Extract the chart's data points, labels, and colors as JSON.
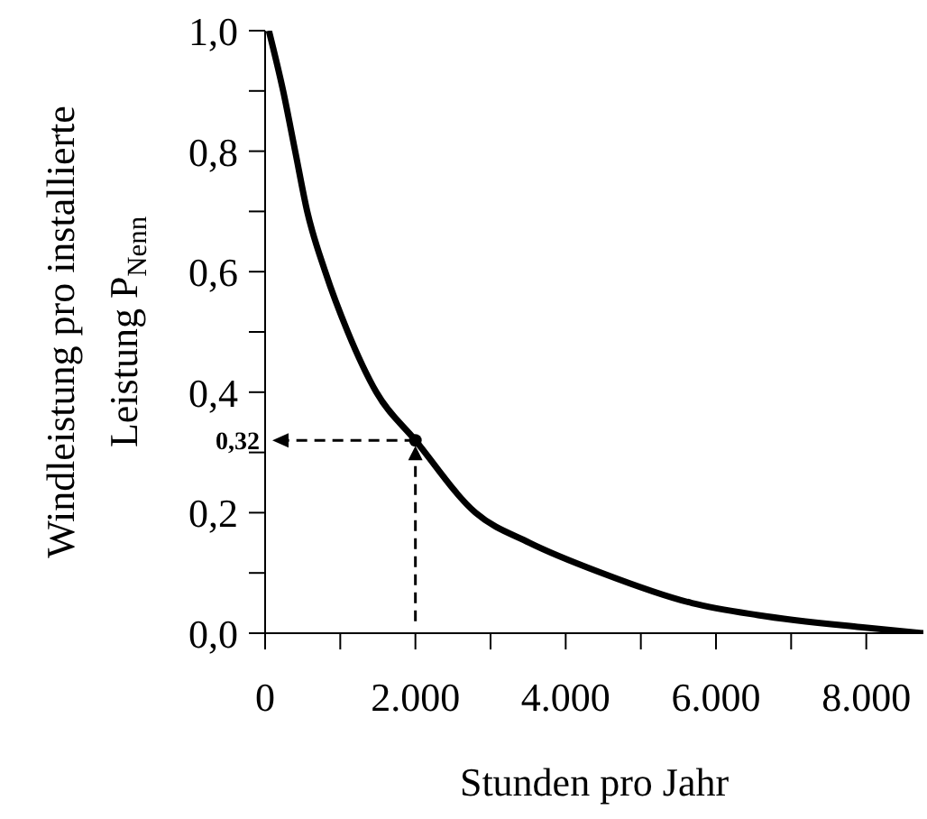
{
  "chart_data": {
    "type": "line",
    "xlabel": "Stunden pro Jahr",
    "ylabel": "Windleistung pro installierte Leistung P$_{Nenn}$",
    "x": [
      50,
      240,
      400,
      560,
      800,
      1100,
      1480,
      2000,
      2800,
      3520,
      4480,
      5680,
      6560,
      7920,
      8760
    ],
    "series": [
      {
        "color": "#000000",
        "values": [
          1.0,
          0.9,
          0.8,
          0.7,
          0.6,
          0.5,
          0.4,
          0.32,
          0.2,
          0.15,
          0.1,
          0.05,
          0.03,
          0.01,
          0.0
        ]
      }
    ],
    "xlim": [
      0,
      8760
    ],
    "ylim": [
      0,
      1
    ],
    "xticks": [
      {
        "value": 0,
        "label": "0"
      },
      {
        "value": 1000,
        "label": null
      },
      {
        "value": 2000,
        "label": "2.000"
      },
      {
        "value": 3000,
        "label": null
      },
      {
        "value": 4000,
        "label": "4.000"
      },
      {
        "value": 5000,
        "label": null
      },
      {
        "value": 6000,
        "label": "6.000"
      },
      {
        "value": 7000,
        "label": null
      },
      {
        "value": 8000,
        "label": "8.000"
      }
    ],
    "yticks": [
      {
        "value": 0,
        "label": "0,0"
      },
      {
        "value": 0.1,
        "label": null
      },
      {
        "value": 0.2,
        "label": "0,2"
      },
      {
        "value": 0.3,
        "label": null
      },
      {
        "value": 0.4,
        "label": "0,4"
      },
      {
        "value": 0.5,
        "label": null
      },
      {
        "value": 0.6,
        "label": "0,6"
      },
      {
        "value": 0.7,
        "label": null
      },
      {
        "value": 0.8,
        "label": "0,8"
      },
      {
        "value": 0.9,
        "label": null
      },
      {
        "value": 1.0,
        "label": "1,0"
      }
    ],
    "annotations": [
      {
        "text": "0,32",
        "x": 2000,
        "y": 0.32
      }
    ],
    "grid": false,
    "legend": false,
    "marker": "none",
    "line_style": "solid"
  }
}
